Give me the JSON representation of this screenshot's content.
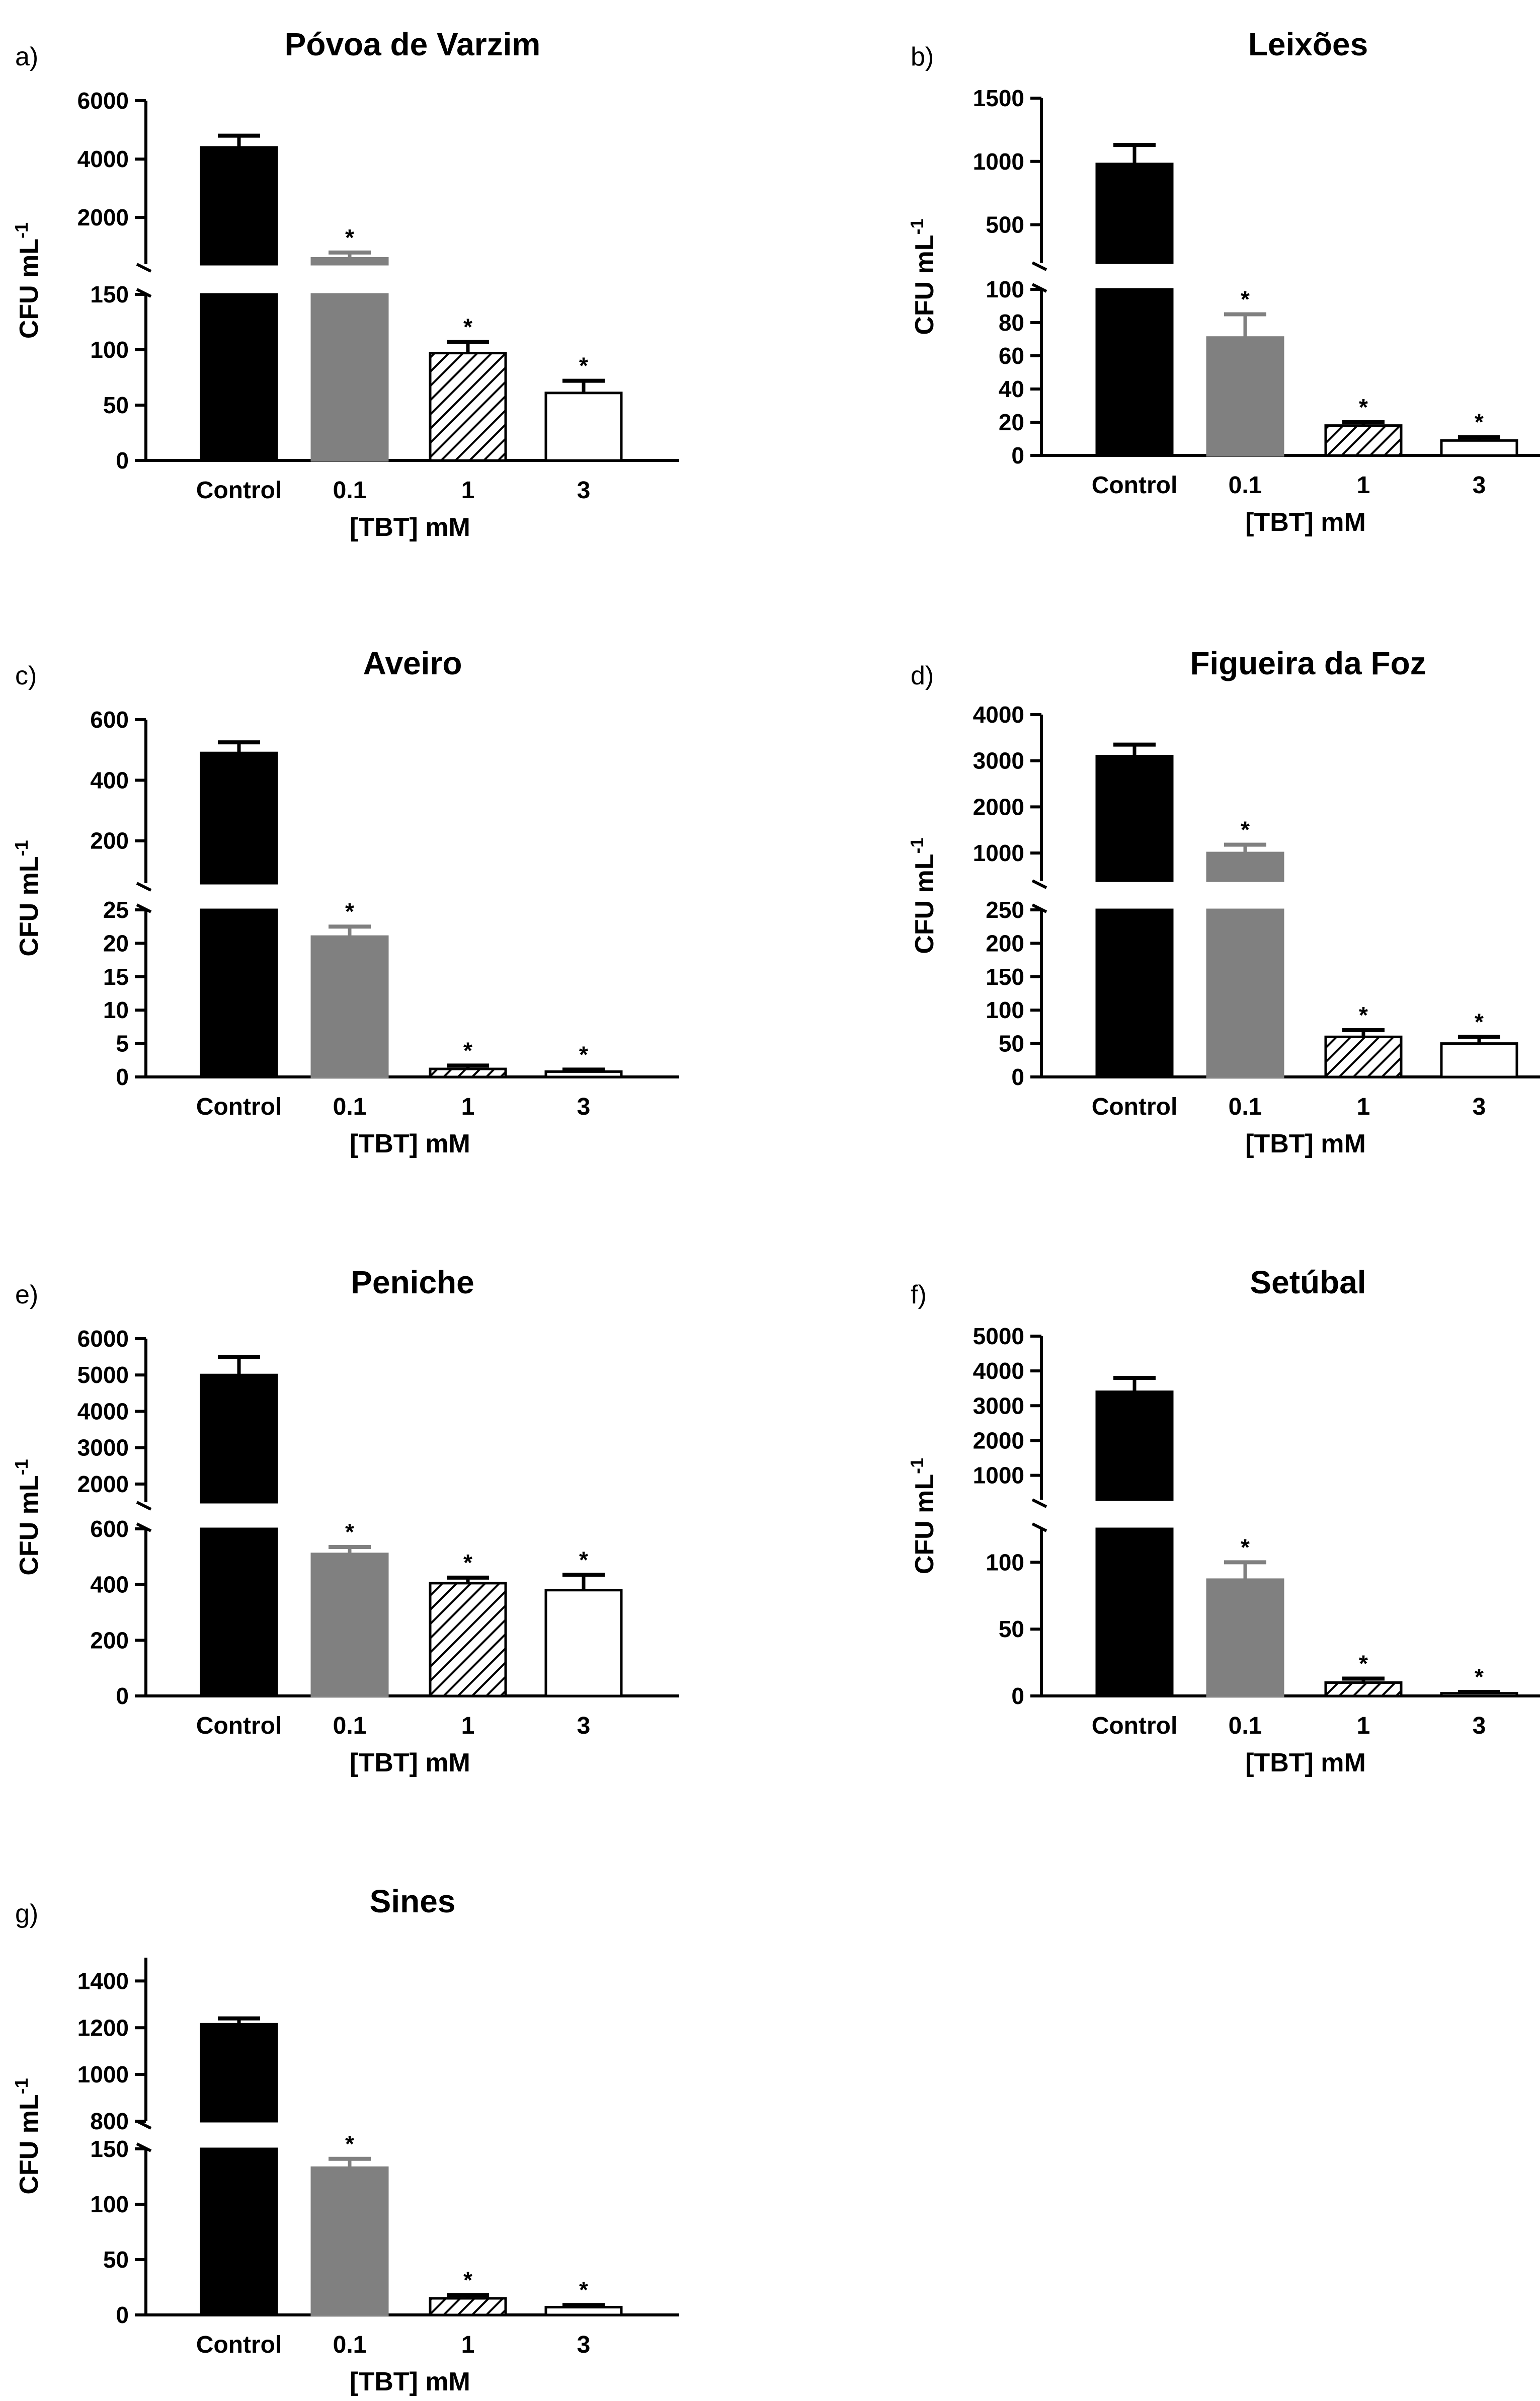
{
  "chart_data": [
    {
      "panel": "a)",
      "type": "bar",
      "title": "Póvoa de Varzim",
      "xlabel": "[TBT] mM",
      "ylabel": "CFU mL",
      "ylabel_sup": "-1",
      "categories": [
        "Control",
        "0.1",
        "1",
        "3"
      ],
      "values": [
        4400,
        600,
        97,
        61
      ],
      "errors": [
        400,
        200,
        10,
        11
      ],
      "significant": [
        false,
        true,
        true,
        true
      ],
      "segments": [
        {
          "range": [
            0,
            150
          ],
          "ticks": [
            "0",
            "50",
            "100",
            "150"
          ]
        },
        {
          "range": [
            400,
            6000
          ],
          "ticks": [
            "2000",
            "4000",
            "6000"
          ]
        }
      ]
    },
    {
      "panel": "b)",
      "type": "bar",
      "title": "Leixões",
      "xlabel": "[TBT] mM",
      "ylabel": "CFU mL",
      "ylabel_sup": "-1",
      "categories": [
        "Control",
        "0.1",
        "1",
        "3"
      ],
      "values": [
        980,
        71,
        18,
        9
      ],
      "errors": [
        150,
        14,
        2,
        2
      ],
      "significant": [
        false,
        true,
        true,
        true
      ],
      "segments": [
        {
          "range": [
            0,
            100
          ],
          "ticks": [
            "0",
            "20",
            "40",
            "60",
            "80",
            "100"
          ]
        },
        {
          "range": [
            200,
            1500
          ],
          "ticks": [
            "500",
            "1000",
            "1500"
          ]
        }
      ]
    },
    {
      "panel": "c)",
      "type": "bar",
      "title": "Aveiro",
      "xlabel": "[TBT] mM",
      "ylabel": "CFU mL",
      "ylabel_sup": "-1",
      "categories": [
        "Control",
        "0.1",
        "1",
        "3"
      ],
      "values": [
        490,
        21,
        1.2,
        0.8
      ],
      "errors": [
        35,
        1.5,
        0.5,
        0.3
      ],
      "significant": [
        false,
        true,
        true,
        true
      ],
      "segments": [
        {
          "range": [
            0,
            25
          ],
          "ticks": [
            "0",
            "5",
            "10",
            "15",
            "20",
            "25"
          ]
        },
        {
          "range": [
            60,
            600
          ],
          "ticks": [
            "200",
            "400",
            "600"
          ]
        }
      ]
    },
    {
      "panel": "d)",
      "type": "bar",
      "title": "Figueira da Foz",
      "xlabel": "[TBT] mM",
      "ylabel": "CFU mL",
      "ylabel_sup": "-1",
      "categories": [
        "Control",
        "0.1",
        "1",
        "3"
      ],
      "values": [
        3100,
        1000,
        60,
        50
      ],
      "errors": [
        250,
        180,
        10,
        10
      ],
      "significant": [
        false,
        true,
        true,
        true
      ],
      "segments": [
        {
          "range": [
            0,
            250
          ],
          "ticks": [
            "0",
            "50",
            "100",
            "150",
            "200",
            "250"
          ]
        },
        {
          "range": [
            400,
            4000
          ],
          "ticks": [
            "1000",
            "2000",
            "3000",
            "4000"
          ]
        }
      ]
    },
    {
      "panel": "e)",
      "type": "bar",
      "title": "Peniche",
      "xlabel": "[TBT] mM",
      "ylabel": "CFU mL",
      "ylabel_sup": "-1",
      "categories": [
        "Control",
        "0.1",
        "1",
        "3"
      ],
      "values": [
        5000,
        510,
        405,
        380
      ],
      "errors": [
        500,
        25,
        20,
        55
      ],
      "significant": [
        false,
        true,
        true,
        true
      ],
      "segments": [
        {
          "range": [
            0,
            600
          ],
          "ticks": [
            "0",
            "200",
            "400",
            "600"
          ]
        },
        {
          "range": [
            1500,
            6000
          ],
          "ticks": [
            "2000",
            "3000",
            "4000",
            "5000",
            "6000"
          ]
        }
      ]
    },
    {
      "panel": "f)",
      "type": "bar",
      "title": "Setúbal",
      "xlabel": "[TBT] mM",
      "ylabel": "CFU mL",
      "ylabel_sup": "-1",
      "categories": [
        "Control",
        "0.1",
        "1",
        "3"
      ],
      "values": [
        3400,
        87,
        10,
        2
      ],
      "errors": [
        400,
        13,
        3,
        1
      ],
      "significant": [
        false,
        true,
        true,
        true
      ],
      "segments": [
        {
          "range": [
            0,
            125
          ],
          "ticks": [
            "0",
            "50",
            "100"
          ]
        },
        {
          "range": [
            300,
            5000
          ],
          "ticks": [
            "1000",
            "2000",
            "3000",
            "4000",
            "5000"
          ]
        }
      ]
    },
    {
      "panel": "g)",
      "type": "bar",
      "title": "Sines",
      "xlabel": "[TBT] mM",
      "ylabel": "CFU mL",
      "ylabel_sup": "-1",
      "categories": [
        "Control",
        "0.1",
        "1",
        "3"
      ],
      "values": [
        1215,
        133,
        15,
        7
      ],
      "errors": [
        25,
        8,
        3,
        2
      ],
      "significant": [
        false,
        true,
        true,
        true
      ],
      "segments": [
        {
          "range": [
            0,
            150
          ],
          "ticks": [
            "0",
            "50",
            "100",
            "150"
          ]
        },
        {
          "range": [
            800,
            1500
          ],
          "ticks": [
            "800",
            "1000",
            "1200",
            "1400"
          ]
        }
      ]
    }
  ]
}
